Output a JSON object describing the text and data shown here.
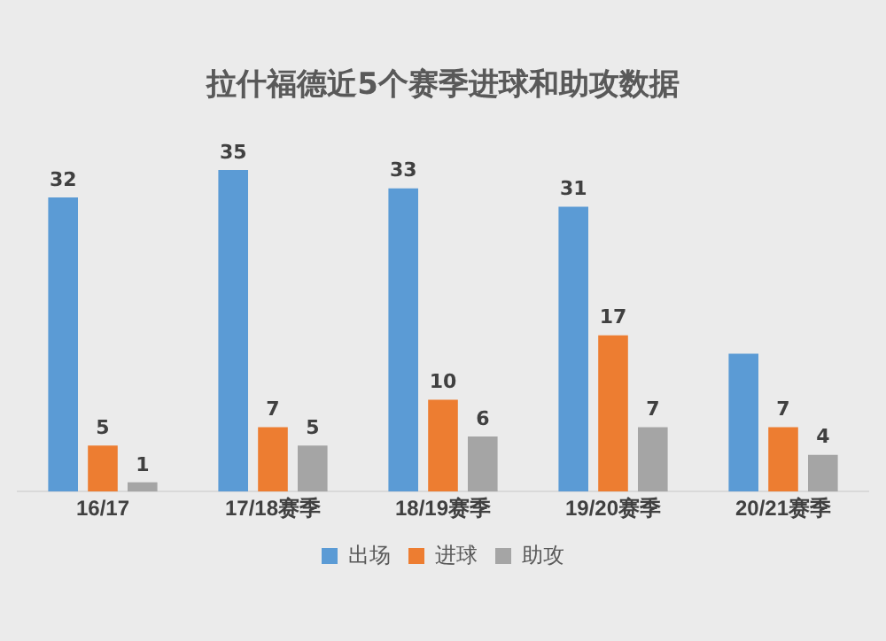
{
  "chart_data": {
    "type": "bar",
    "title": "拉什福德近5个赛季进球和助攻数据",
    "categories": [
      "16/17",
      "17/18赛季",
      "18/19赛季",
      "19/20赛季",
      "20/21赛季"
    ],
    "series": [
      {
        "name": "出场",
        "color": "#5b9bd5",
        "values": [
          32,
          35,
          33,
          31,
          15
        ],
        "value_labels": [
          "32",
          "35",
          "33",
          "31",
          null
        ]
      },
      {
        "name": "进球",
        "color": "#ed7d31",
        "values": [
          5,
          7,
          10,
          17,
          7
        ],
        "value_labels": [
          "5",
          "7",
          "10",
          "17",
          "7"
        ]
      },
      {
        "name": "助攻",
        "color": "#a5a5a5",
        "values": [
          1,
          5,
          6,
          7,
          4
        ],
        "value_labels": [
          "1",
          "5",
          "6",
          "7",
          "4"
        ]
      }
    ],
    "legend": "bottom",
    "grid": false
  }
}
